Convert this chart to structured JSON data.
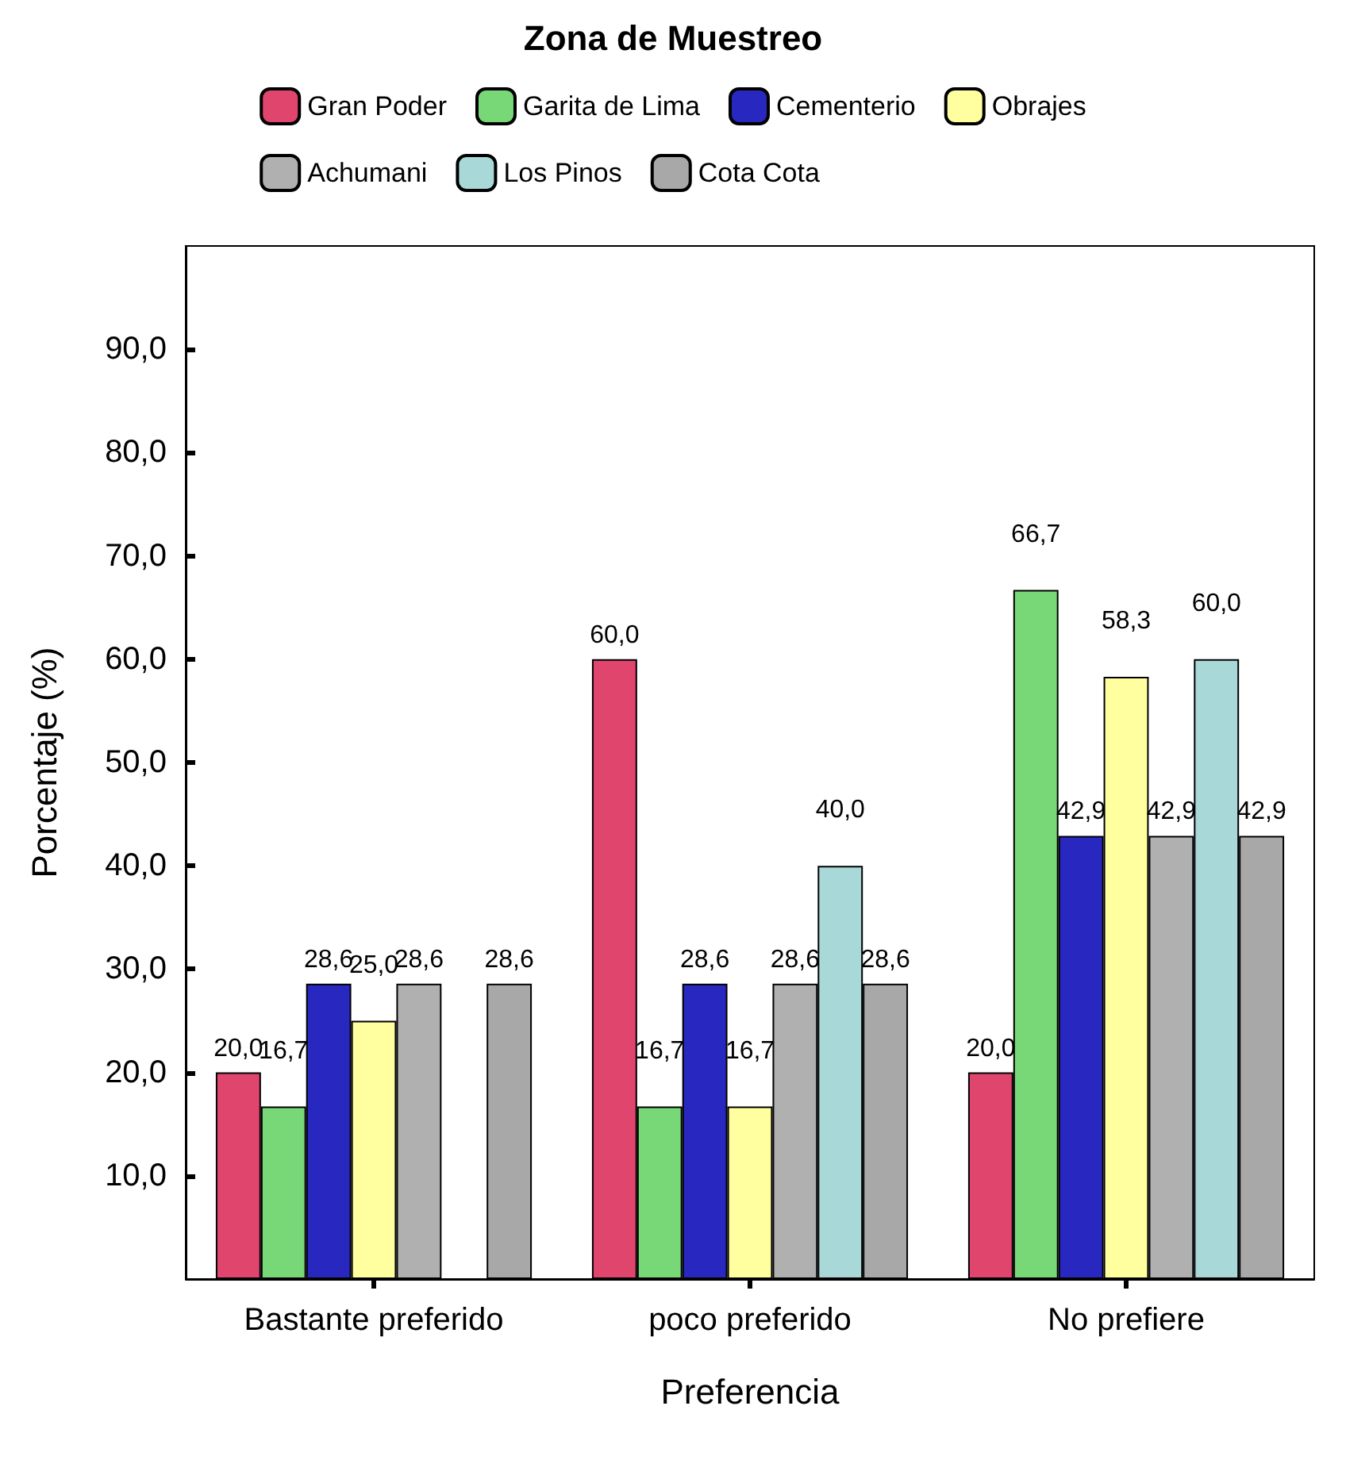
{
  "chart_data": {
    "type": "bar",
    "legend_title": "Zona de Muestreo",
    "xlabel": "Preferencia",
    "ylabel": "Porcentaje (%)",
    "categories": [
      "Bastante preferido",
      "poco preferido",
      "No prefiere"
    ],
    "series": [
      {
        "name": "Gran Poder",
        "color": "#e0456e",
        "values": [
          20.0,
          60.0,
          20.0
        ],
        "value_labels": [
          "20,0",
          "60,0",
          "20,0"
        ]
      },
      {
        "name": "Garita de Lima",
        "color": "#78d878",
        "values": [
          16.7,
          16.7,
          66.7
        ],
        "value_labels": [
          "16,7",
          "16,7",
          "66,7"
        ]
      },
      {
        "name": "Cementerio",
        "color": "#2828c0",
        "values": [
          28.6,
          28.6,
          42.9
        ],
        "value_labels": [
          "28,6",
          "28,6",
          "42,9"
        ]
      },
      {
        "name": "Obrajes",
        "color": "#ffffa0",
        "values": [
          25.0,
          16.7,
          58.3
        ],
        "value_labels": [
          "25,0",
          "16,7",
          "58,3"
        ]
      },
      {
        "name": "Achumani",
        "color": "#b0b0b0",
        "values": [
          28.6,
          28.6,
          42.9
        ],
        "value_labels": [
          "28,6",
          "28,6",
          "42,9"
        ]
      },
      {
        "name": "Los Pinos",
        "color": "#a8d8d8",
        "values": [
          null,
          40.0,
          60.0
        ],
        "value_labels": [
          null,
          "40,0",
          "60,0"
        ]
      },
      {
        "name": "Cota Cota",
        "color": "#a8a8a8",
        "values": [
          28.6,
          28.6,
          42.9
        ],
        "value_labels": [
          "28,6",
          "28,6",
          "42,9"
        ]
      }
    ],
    "ylim": [
      0,
      100
    ],
    "yticks": [
      {
        "value": 10,
        "label": "10,0"
      },
      {
        "value": 20,
        "label": "20,0"
      },
      {
        "value": 30,
        "label": "30,0"
      },
      {
        "value": 40,
        "label": "40,0"
      },
      {
        "value": 50,
        "label": "50,0"
      },
      {
        "value": 60,
        "label": "60,0"
      },
      {
        "value": 70,
        "label": "70,0"
      },
      {
        "value": 80,
        "label": "80,0"
      },
      {
        "value": 90,
        "label": "90,0"
      }
    ],
    "grid": false,
    "legend": "top"
  }
}
